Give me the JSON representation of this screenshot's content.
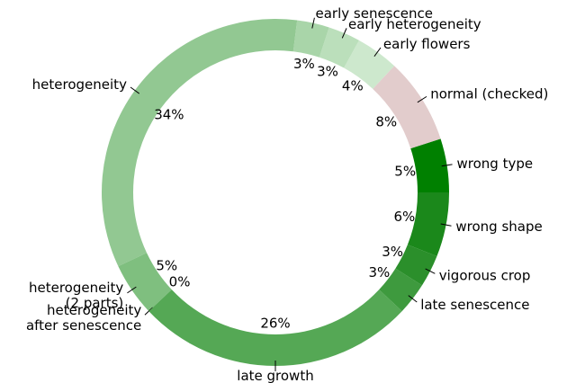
{
  "chart_data": {
    "type": "donut",
    "categories": [
      "wrong type",
      "normal (checked)",
      "early flowers",
      "early heterogeneity",
      "early senescence",
      "heterogeneity",
      "heterogeneity\n(2 parts)",
      "heterogeneity\nafter senescence",
      "late growth",
      "late senescence",
      "vigorous crop",
      "wrong shape"
    ],
    "values": [
      5,
      8,
      4,
      3,
      3,
      34,
      5,
      0,
      26,
      3,
      3,
      6
    ],
    "value_labels": [
      "5%",
      "8%",
      "4%",
      "3%",
      "3%",
      "34%",
      "5%",
      "0%",
      "26%",
      "3%",
      "3%",
      "6%"
    ],
    "colors": [
      "#008000",
      "#e2cccc",
      "#cde8cd",
      "#bbdfbb",
      "#a9d5a9",
      "#92c892",
      "#7fbf7f",
      "#6cb46c",
      "#55a855",
      "#3e9a3e",
      "#2b8f2b",
      "#1b881b"
    ]
  }
}
